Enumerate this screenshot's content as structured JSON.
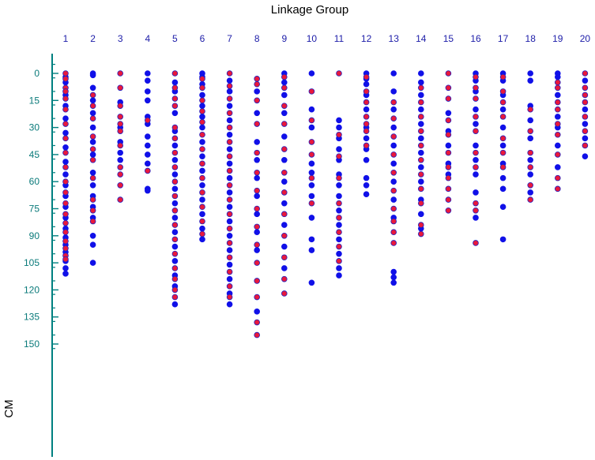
{
  "chart_data": {
    "type": "scatter",
    "title": "Linkage Group",
    "xlabel": "",
    "ylabel": "CM",
    "categories": [
      "1",
      "2",
      "3",
      "4",
      "5",
      "6",
      "7",
      "8",
      "9",
      "10",
      "11",
      "12",
      "13",
      "14",
      "15",
      "16",
      "17",
      "18",
      "19",
      "20"
    ],
    "y_ticks": [
      0,
      15,
      30,
      45,
      60,
      75,
      90,
      105,
      120,
      135,
      150
    ],
    "y_tick_labels": [
      "0",
      "15",
      "30",
      "45",
      "60",
      "75",
      "90",
      "105",
      "120",
      "135",
      "150"
    ],
    "ylim": [
      -5,
      155
    ],
    "y_inverted": true,
    "grid": false,
    "legend": "none",
    "colors": {
      "marker_blue": "#1010e8",
      "marker_red": "#e8183c",
      "marker_red_edge": "#2020c0",
      "axis": "#008080",
      "category_label": "#1c1ca8",
      "tick_label": "#0a7a7a"
    },
    "groups": [
      {
        "group": "1",
        "blue": [
          2,
          5,
          12,
          18,
          25,
          33,
          41,
          49,
          56,
          62,
          68,
          74,
          80,
          86,
          91,
          95,
          99,
          104,
          108,
          111
        ],
        "red": [
          0,
          3,
          8,
          10,
          14,
          20,
          28,
          36,
          44,
          52,
          60,
          66,
          72,
          78,
          83,
          88,
          93,
          97,
          101,
          103
        ]
      },
      {
        "group": "2",
        "blue": [
          0,
          1,
          8,
          15,
          22,
          30,
          38,
          45,
          55,
          62,
          68,
          74,
          80,
          90,
          95,
          105
        ],
        "red": [
          12,
          18,
          25,
          35,
          42,
          48,
          58,
          70,
          76,
          82
        ]
      },
      {
        "group": "3",
        "blue": [
          16,
          30,
          38,
          44,
          48
        ],
        "red": [
          0,
          8,
          18,
          24,
          28,
          32,
          40,
          52,
          56,
          62,
          70
        ]
      },
      {
        "group": "4",
        "blue": [
          0,
          4,
          10,
          15,
          24,
          28,
          35,
          40,
          45,
          50,
          64,
          65
        ],
        "red": [
          26,
          54
        ]
      },
      {
        "group": "5",
        "blue": [
          5,
          10,
          22,
          32,
          40,
          48,
          56,
          64,
          72,
          80,
          88,
          96,
          104,
          112,
          118,
          128
        ],
        "red": [
          0,
          8,
          14,
          18,
          30,
          36,
          44,
          52,
          60,
          68,
          76,
          84,
          92,
          100,
          108,
          114,
          120,
          124
        ]
      },
      {
        "group": "6",
        "blue": [
          0,
          2,
          6,
          12,
          18,
          24,
          30,
          38,
          46,
          54,
          62,
          70,
          78,
          86,
          92
        ],
        "red": [
          3,
          8,
          15,
          21,
          27,
          34,
          42,
          50,
          58,
          66,
          74,
          82,
          89
        ]
      },
      {
        "group": "7",
        "blue": [
          4,
          10,
          18,
          26,
          34,
          42,
          50,
          58,
          66,
          74,
          82,
          90,
          98,
          106,
          114,
          122,
          128
        ],
        "red": [
          0,
          7,
          14,
          22,
          30,
          38,
          46,
          54,
          62,
          70,
          78,
          86,
          94,
          102,
          110,
          118,
          124
        ]
      },
      {
        "group": "8",
        "blue": [
          10,
          22,
          38,
          48,
          58,
          68,
          78,
          88,
          98,
          132
        ],
        "red": [
          3,
          6,
          15,
          28,
          44,
          55,
          65,
          75,
          85,
          95,
          105,
          115,
          124,
          138,
          145
        ]
      },
      {
        "group": "9",
        "blue": [
          0,
          5,
          12,
          22,
          35,
          48,
          60,
          72,
          84,
          96,
          108
        ],
        "red": [
          2,
          8,
          18,
          28,
          42,
          55,
          66,
          78,
          90,
          102,
          114,
          122
        ]
      },
      {
        "group": "10",
        "blue": [
          0,
          20,
          30,
          50,
          55,
          62,
          68,
          80,
          92,
          98,
          116
        ],
        "red": [
          10,
          26,
          38,
          45,
          58,
          72
        ]
      },
      {
        "group": "11",
        "blue": [
          26,
          30,
          36,
          42,
          48,
          56,
          62,
          68,
          76,
          84,
          92,
          100,
          108,
          112
        ],
        "red": [
          0,
          34,
          46,
          58,
          72,
          80,
          88,
          96,
          104
        ]
      },
      {
        "group": "12",
        "blue": [
          0,
          3,
          6,
          12,
          20,
          30,
          36,
          42,
          48,
          58,
          62,
          67
        ],
        "red": [
          2,
          10,
          16,
          24,
          28,
          32,
          40
        ]
      },
      {
        "group": "13",
        "blue": [
          0,
          10,
          20,
          30,
          40,
          50,
          60,
          70,
          80,
          110,
          113,
          116
        ],
        "red": [
          16,
          25,
          35,
          45,
          55,
          65,
          75,
          82,
          88,
          94
        ]
      },
      {
        "group": "14",
        "blue": [
          0,
          5,
          12,
          20,
          28,
          36,
          44,
          52,
          60,
          70,
          78,
          86
        ],
        "red": [
          8,
          16,
          24,
          32,
          40,
          48,
          56,
          64,
          72,
          84,
          89
        ]
      },
      {
        "group": "15",
        "blue": [
          22,
          32,
          40,
          50,
          56
        ],
        "red": [
          0,
          8,
          14,
          26,
          34,
          44,
          52,
          58,
          64,
          70,
          76
        ]
      },
      {
        "group": "16",
        "blue": [
          0,
          4,
          10,
          20,
          28,
          40,
          48,
          56,
          66,
          80
        ],
        "red": [
          2,
          8,
          14,
          24,
          32,
          44,
          52,
          72,
          76,
          94
        ]
      },
      {
        "group": "17",
        "blue": [
          0,
          4,
          12,
          20,
          30,
          40,
          50,
          58,
          64,
          74,
          92
        ],
        "red": [
          2,
          10,
          16,
          24,
          36,
          44,
          52
        ]
      },
      {
        "group": "18",
        "blue": [
          0,
          4,
          18,
          26,
          36,
          48,
          56,
          66
        ],
        "red": [
          20,
          32,
          44,
          52,
          62,
          70
        ]
      },
      {
        "group": "19",
        "blue": [
          0,
          2,
          12,
          24,
          30,
          40,
          52
        ],
        "red": [
          5,
          8,
          16,
          20,
          28,
          34,
          45,
          58,
          64
        ]
      },
      {
        "group": "20",
        "blue": [
          4,
          20,
          28,
          36,
          46
        ],
        "red": [
          0,
          8,
          12,
          16,
          24,
          32,
          40
        ]
      }
    ]
  }
}
